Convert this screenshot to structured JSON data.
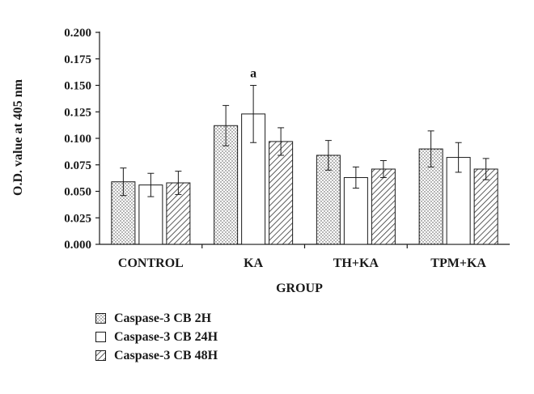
{
  "chart_data": {
    "type": "bar",
    "xlabel": "GROUP",
    "ylabel": "O.D. value at 405 nm",
    "ylim": [
      0,
      0.2
    ],
    "yticks": [
      "0.000",
      "0.025",
      "0.050",
      "0.075",
      "0.100",
      "0.125",
      "0.150",
      "0.175",
      "0.200"
    ],
    "categories": [
      "CONTROL",
      "KA",
      "TH+KA",
      "TPM+KA"
    ],
    "series": [
      {
        "name": "Caspase-3 CB 2H",
        "pattern": "dots",
        "values": [
          0.059,
          0.112,
          0.084,
          0.09
        ],
        "errors": [
          0.013,
          0.019,
          0.014,
          0.017
        ]
      },
      {
        "name": "Caspase-3 CB 24H",
        "pattern": "plain",
        "values": [
          0.056,
          0.123,
          0.063,
          0.082
        ],
        "errors": [
          0.011,
          0.027,
          0.01,
          0.014
        ]
      },
      {
        "name": "Caspase-3 CB 48H",
        "pattern": "hatch",
        "values": [
          0.058,
          0.097,
          0.071,
          0.071
        ],
        "errors": [
          0.011,
          0.013,
          0.008,
          0.01
        ]
      }
    ],
    "annotations": [
      {
        "text": "a",
        "category": "KA",
        "series": 1
      }
    ],
    "legend_position": "bottom-left",
    "grid": false
  },
  "colors": {
    "ink": "#1a1a1a",
    "bar_fill": "#ffffff"
  }
}
